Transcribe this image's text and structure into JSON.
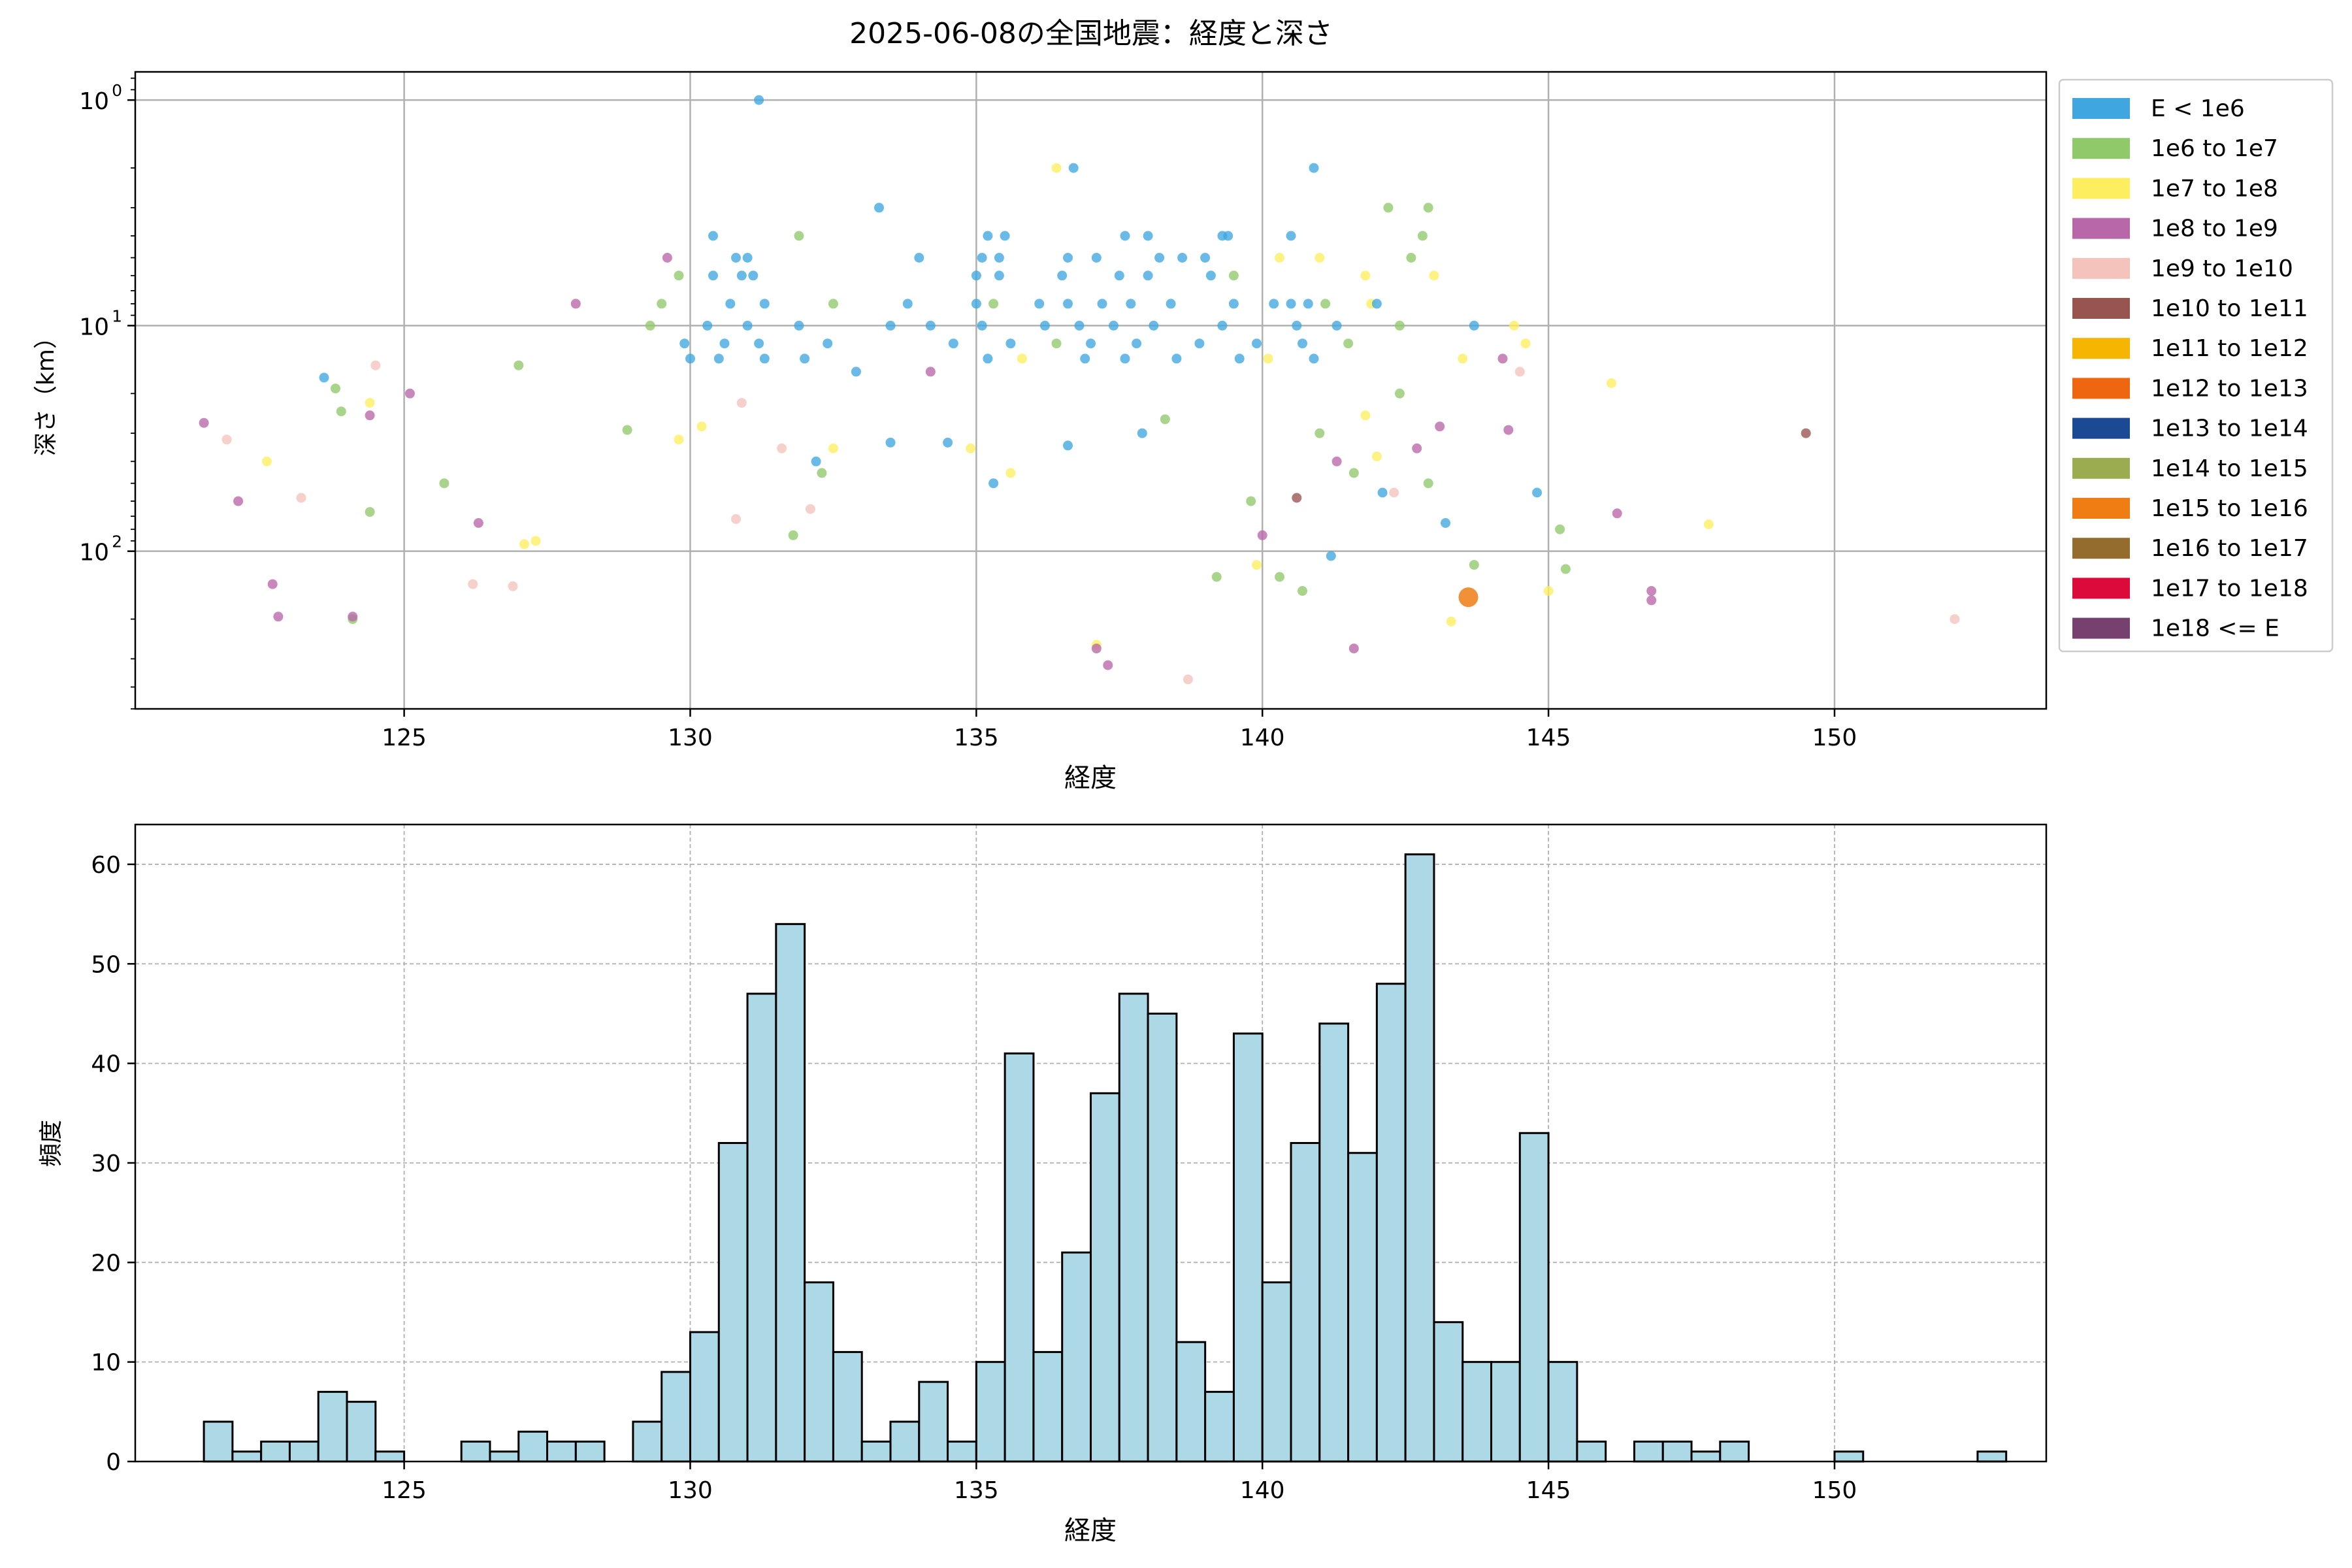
{
  "colors": {
    "bins": [
      "#3fa6df",
      "#8fc96a",
      "#fdee5f",
      "#b867a8",
      "#f4c3bb",
      "#98554f",
      "#f6b500",
      "#ee6710",
      "#1c4994",
      "#9bab4f",
      "#ef7d14",
      "#936c2e",
      "#db0a3a",
      "#76406f"
    ],
    "hist_fill": "#add8e6",
    "hist_edge": "#000000",
    "grid": "#b0b0b0",
    "small_point": "#c8c8c8"
  },
  "chart_data": [
    {
      "type": "scatter",
      "title": "2025-06-08の全国地震：経度と深さ",
      "xlabel": "経度",
      "ylabel": "深さ（km）",
      "xlim": [
        120.3,
        153.7
      ],
      "ylim": [
        500,
        0.75
      ],
      "y_scale": "log",
      "y_inverted": true,
      "grid": true,
      "x_ticks": [
        125,
        130,
        135,
        140,
        145,
        150
      ],
      "x_tick_labels": [
        "125",
        "130",
        "135",
        "140",
        "145",
        "150"
      ],
      "y_ticks": [
        1,
        10,
        100
      ],
      "y_tick_labels": [
        [
          "10",
          "0"
        ],
        [
          "10",
          "1"
        ],
        [
          "10",
          "2"
        ]
      ],
      "legend_position": "outside-right",
      "legend": [
        "E < 1e6",
        "1e6 to 1e7",
        "1e7 to 1e8",
        "1e8 to 1e9",
        "1e9 to 1e10",
        "1e10 to 1e11",
        "1e11 to 1e12",
        "1e12 to 1e13",
        "1e13 to 1e14",
        "1e14 to 1e15",
        "1e15 to 1e16",
        "1e16 to 1e17",
        "1e17 to 1e18",
        "1e18 <= E"
      ],
      "points": [
        {
          "x": 131.2,
          "y": 1,
          "c": 0
        },
        {
          "x": 136.4,
          "y": 2,
          "c": 2
        },
        {
          "x": 136.7,
          "y": 2,
          "c": 0
        },
        {
          "x": 140.9,
          "y": 2,
          "c": 0
        },
        {
          "x": 133.3,
          "y": 3,
          "c": 0
        },
        {
          "x": 142.2,
          "y": 3,
          "c": 1
        },
        {
          "x": 142.9,
          "y": 3,
          "c": 1
        },
        {
          "x": 130.4,
          "y": 4,
          "c": 0
        },
        {
          "x": 131.9,
          "y": 4,
          "c": 1
        },
        {
          "x": 135.2,
          "y": 4,
          "c": 0
        },
        {
          "x": 135.5,
          "y": 4,
          "c": 0
        },
        {
          "x": 137.6,
          "y": 4,
          "c": 0
        },
        {
          "x": 138.0,
          "y": 4,
          "c": 0
        },
        {
          "x": 139.3,
          "y": 4,
          "c": 0
        },
        {
          "x": 139.4,
          "y": 4,
          "c": 0
        },
        {
          "x": 140.5,
          "y": 4,
          "c": 0
        },
        {
          "x": 142.8,
          "y": 4,
          "c": 1
        },
        {
          "x": 129.6,
          "y": 5,
          "c": 3
        },
        {
          "x": 130.8,
          "y": 5,
          "c": 0
        },
        {
          "x": 131.0,
          "y": 5,
          "c": 0
        },
        {
          "x": 134.0,
          "y": 5,
          "c": 0
        },
        {
          "x": 135.1,
          "y": 5,
          "c": 0
        },
        {
          "x": 135.4,
          "y": 5,
          "c": 0
        },
        {
          "x": 136.6,
          "y": 5,
          "c": 0
        },
        {
          "x": 137.1,
          "y": 5,
          "c": 0
        },
        {
          "x": 138.2,
          "y": 5,
          "c": 0
        },
        {
          "x": 138.6,
          "y": 5,
          "c": 0
        },
        {
          "x": 139.0,
          "y": 5,
          "c": 0
        },
        {
          "x": 140.3,
          "y": 5,
          "c": 2
        },
        {
          "x": 141.0,
          "y": 5,
          "c": 2
        },
        {
          "x": 142.6,
          "y": 5,
          "c": 1
        },
        {
          "x": 129.8,
          "y": 6,
          "c": 1
        },
        {
          "x": 130.4,
          "y": 6,
          "c": 0
        },
        {
          "x": 130.9,
          "y": 6,
          "c": 0
        },
        {
          "x": 131.1,
          "y": 6,
          "c": 0
        },
        {
          "x": 135.0,
          "y": 6,
          "c": 0
        },
        {
          "x": 135.4,
          "y": 6,
          "c": 0
        },
        {
          "x": 136.5,
          "y": 6,
          "c": 0
        },
        {
          "x": 137.5,
          "y": 6,
          "c": 0
        },
        {
          "x": 138.0,
          "y": 6,
          "c": 0
        },
        {
          "x": 139.1,
          "y": 6,
          "c": 0
        },
        {
          "x": 139.5,
          "y": 6,
          "c": 1
        },
        {
          "x": 141.8,
          "y": 6,
          "c": 2
        },
        {
          "x": 143.0,
          "y": 6,
          "c": 2
        },
        {
          "x": 128.0,
          "y": 8,
          "c": 3
        },
        {
          "x": 129.5,
          "y": 8,
          "c": 1
        },
        {
          "x": 130.7,
          "y": 8,
          "c": 0
        },
        {
          "x": 131.3,
          "y": 8,
          "c": 0
        },
        {
          "x": 132.5,
          "y": 8,
          "c": 1
        },
        {
          "x": 133.8,
          "y": 8,
          "c": 0
        },
        {
          "x": 135.0,
          "y": 8,
          "c": 0
        },
        {
          "x": 135.3,
          "y": 8,
          "c": 1
        },
        {
          "x": 136.1,
          "y": 8,
          "c": 0
        },
        {
          "x": 136.6,
          "y": 8,
          "c": 0
        },
        {
          "x": 137.2,
          "y": 8,
          "c": 0
        },
        {
          "x": 137.7,
          "y": 8,
          "c": 0
        },
        {
          "x": 138.4,
          "y": 8,
          "c": 0
        },
        {
          "x": 139.5,
          "y": 8,
          "c": 0
        },
        {
          "x": 140.2,
          "y": 8,
          "c": 0
        },
        {
          "x": 140.5,
          "y": 8,
          "c": 0
        },
        {
          "x": 140.8,
          "y": 8,
          "c": 0
        },
        {
          "x": 141.1,
          "y": 8,
          "c": 1
        },
        {
          "x": 141.9,
          "y": 8,
          "c": 2
        },
        {
          "x": 142.0,
          "y": 8,
          "c": 0
        },
        {
          "x": 129.3,
          "y": 10,
          "c": 1
        },
        {
          "x": 130.3,
          "y": 10,
          "c": 0
        },
        {
          "x": 131.0,
          "y": 10,
          "c": 0
        },
        {
          "x": 131.9,
          "y": 10,
          "c": 0
        },
        {
          "x": 133.5,
          "y": 10,
          "c": 0
        },
        {
          "x": 134.2,
          "y": 10,
          "c": 0
        },
        {
          "x": 135.1,
          "y": 10,
          "c": 0
        },
        {
          "x": 136.2,
          "y": 10,
          "c": 0
        },
        {
          "x": 136.8,
          "y": 10,
          "c": 0
        },
        {
          "x": 137.4,
          "y": 10,
          "c": 0
        },
        {
          "x": 138.1,
          "y": 10,
          "c": 0
        },
        {
          "x": 139.3,
          "y": 10,
          "c": 0
        },
        {
          "x": 140.6,
          "y": 10,
          "c": 0
        },
        {
          "x": 141.3,
          "y": 10,
          "c": 0
        },
        {
          "x": 142.4,
          "y": 10,
          "c": 1
        },
        {
          "x": 143.7,
          "y": 10,
          "c": 0
        },
        {
          "x": 144.4,
          "y": 10,
          "c": 2
        },
        {
          "x": 129.9,
          "y": 12,
          "c": 0
        },
        {
          "x": 130.6,
          "y": 12,
          "c": 0
        },
        {
          "x": 131.2,
          "y": 12,
          "c": 0
        },
        {
          "x": 132.4,
          "y": 12,
          "c": 0
        },
        {
          "x": 134.6,
          "y": 12,
          "c": 0
        },
        {
          "x": 135.6,
          "y": 12,
          "c": 0
        },
        {
          "x": 136.4,
          "y": 12,
          "c": 1
        },
        {
          "x": 137.0,
          "y": 12,
          "c": 0
        },
        {
          "x": 137.8,
          "y": 12,
          "c": 0
        },
        {
          "x": 138.9,
          "y": 12,
          "c": 0
        },
        {
          "x": 139.9,
          "y": 12,
          "c": 0
        },
        {
          "x": 140.7,
          "y": 12,
          "c": 0
        },
        {
          "x": 141.5,
          "y": 12,
          "c": 1
        },
        {
          "x": 144.6,
          "y": 12,
          "c": 2
        },
        {
          "x": 130.0,
          "y": 14,
          "c": 0
        },
        {
          "x": 130.5,
          "y": 14,
          "c": 0
        },
        {
          "x": 131.3,
          "y": 14,
          "c": 0
        },
        {
          "x": 132.0,
          "y": 14,
          "c": 0
        },
        {
          "x": 135.2,
          "y": 14,
          "c": 0
        },
        {
          "x": 135.8,
          "y": 14,
          "c": 2
        },
        {
          "x": 136.9,
          "y": 14,
          "c": 0
        },
        {
          "x": 137.6,
          "y": 14,
          "c": 0
        },
        {
          "x": 138.5,
          "y": 14,
          "c": 0
        },
        {
          "x": 139.6,
          "y": 14,
          "c": 0
        },
        {
          "x": 140.1,
          "y": 14,
          "c": 2
        },
        {
          "x": 140.9,
          "y": 14,
          "c": 0
        },
        {
          "x": 143.5,
          "y": 14,
          "c": 2
        },
        {
          "x": 144.2,
          "y": 14,
          "c": 3
        },
        {
          "x": 121.5,
          "y": 27,
          "c": 3
        },
        {
          "x": 121.9,
          "y": 32,
          "c": 4
        },
        {
          "x": 122.1,
          "y": 60,
          "c": 3
        },
        {
          "x": 122.6,
          "y": 40,
          "c": 2
        },
        {
          "x": 123.2,
          "y": 58,
          "c": 4
        },
        {
          "x": 123.6,
          "y": 17,
          "c": 0
        },
        {
          "x": 123.8,
          "y": 19,
          "c": 1
        },
        {
          "x": 123.9,
          "y": 24,
          "c": 1
        },
        {
          "x": 124.5,
          "y": 15,
          "c": 4
        },
        {
          "x": 124.4,
          "y": 22,
          "c": 2
        },
        {
          "x": 124.4,
          "y": 25,
          "c": 3
        },
        {
          "x": 124.4,
          "y": 67,
          "c": 1
        },
        {
          "x": 124.1,
          "y": 200,
          "c": 1
        },
        {
          "x": 125.1,
          "y": 20,
          "c": 3
        },
        {
          "x": 125.7,
          "y": 50,
          "c": 1
        },
        {
          "x": 126.3,
          "y": 75,
          "c": 3
        },
        {
          "x": 127.0,
          "y": 15,
          "c": 1
        },
        {
          "x": 127.1,
          "y": 93,
          "c": 2
        },
        {
          "x": 127.3,
          "y": 90,
          "c": 2
        },
        {
          "x": 126.2,
          "y": 140,
          "c": 4
        },
        {
          "x": 126.9,
          "y": 143,
          "c": 4
        },
        {
          "x": 122.7,
          "y": 140,
          "c": 3
        },
        {
          "x": 122.8,
          "y": 195,
          "c": 3
        },
        {
          "x": 124.1,
          "y": 195,
          "c": 3
        },
        {
          "x": 128.9,
          "y": 29,
          "c": 1
        },
        {
          "x": 129.8,
          "y": 32,
          "c": 2
        },
        {
          "x": 130.2,
          "y": 28,
          "c": 2
        },
        {
          "x": 130.9,
          "y": 22,
          "c": 4
        },
        {
          "x": 130.8,
          "y": 72,
          "c": 4
        },
        {
          "x": 131.6,
          "y": 35,
          "c": 4
        },
        {
          "x": 131.8,
          "y": 85,
          "c": 1
        },
        {
          "x": 132.1,
          "y": 65,
          "c": 4
        },
        {
          "x": 132.2,
          "y": 40,
          "c": 0
        },
        {
          "x": 132.3,
          "y": 45,
          "c": 1
        },
        {
          "x": 132.5,
          "y": 35,
          "c": 2
        },
        {
          "x": 132.9,
          "y": 16,
          "c": 0
        },
        {
          "x": 133.5,
          "y": 33,
          "c": 0
        },
        {
          "x": 134.2,
          "y": 16,
          "c": 3
        },
        {
          "x": 134.5,
          "y": 33,
          "c": 0
        },
        {
          "x": 134.9,
          "y": 35,
          "c": 2
        },
        {
          "x": 135.3,
          "y": 50,
          "c": 0
        },
        {
          "x": 135.6,
          "y": 45,
          "c": 2
        },
        {
          "x": 136.6,
          "y": 34,
          "c": 0
        },
        {
          "x": 137.1,
          "y": 260,
          "c": 2
        },
        {
          "x": 137.1,
          "y": 270,
          "c": 3
        },
        {
          "x": 137.3,
          "y": 320,
          "c": 3
        },
        {
          "x": 138.7,
          "y": 370,
          "c": 4
        },
        {
          "x": 138.3,
          "y": 26,
          "c": 1
        },
        {
          "x": 137.9,
          "y": 30,
          "c": 0
        },
        {
          "x": 139.2,
          "y": 130,
          "c": 1
        },
        {
          "x": 139.8,
          "y": 60,
          "c": 1
        },
        {
          "x": 139.9,
          "y": 115,
          "c": 2
        },
        {
          "x": 140.0,
          "y": 85,
          "c": 3
        },
        {
          "x": 140.3,
          "y": 130,
          "c": 1
        },
        {
          "x": 140.6,
          "y": 58,
          "c": 5
        },
        {
          "x": 140.7,
          "y": 150,
          "c": 1
        },
        {
          "x": 141.0,
          "y": 30,
          "c": 1
        },
        {
          "x": 141.2,
          "y": 105,
          "c": 0
        },
        {
          "x": 141.3,
          "y": 40,
          "c": 3
        },
        {
          "x": 141.6,
          "y": 45,
          "c": 1
        },
        {
          "x": 141.6,
          "y": 270,
          "c": 3
        },
        {
          "x": 141.8,
          "y": 25,
          "c": 2
        },
        {
          "x": 142.0,
          "y": 38,
          "c": 2
        },
        {
          "x": 142.1,
          "y": 55,
          "c": 0
        },
        {
          "x": 142.3,
          "y": 55,
          "c": 4
        },
        {
          "x": 142.4,
          "y": 20,
          "c": 1
        },
        {
          "x": 142.7,
          "y": 35,
          "c": 3
        },
        {
          "x": 142.9,
          "y": 50,
          "c": 1
        },
        {
          "x": 143.1,
          "y": 28,
          "c": 3
        },
        {
          "x": 143.2,
          "y": 75,
          "c": 0
        },
        {
          "x": 143.3,
          "y": 205,
          "c": 2
        },
        {
          "x": 143.6,
          "y": 160,
          "c": 10
        },
        {
          "x": 143.7,
          "y": 115,
          "c": 1
        },
        {
          "x": 144.3,
          "y": 29,
          "c": 3
        },
        {
          "x": 144.5,
          "y": 16,
          "c": 4
        },
        {
          "x": 144.8,
          "y": 55,
          "c": 0
        },
        {
          "x": 145.2,
          "y": 80,
          "c": 1
        },
        {
          "x": 145.0,
          "y": 150,
          "c": 2
        },
        {
          "x": 145.3,
          "y": 120,
          "c": 1
        },
        {
          "x": 146.1,
          "y": 18,
          "c": 2
        },
        {
          "x": 146.2,
          "y": 68,
          "c": 3
        },
        {
          "x": 146.8,
          "y": 150,
          "c": 3
        },
        {
          "x": 146.8,
          "y": 165,
          "c": 3
        },
        {
          "x": 147.8,
          "y": 76,
          "c": 2
        },
        {
          "x": 149.5,
          "y": 30,
          "c": 5
        },
        {
          "x": 152.1,
          "y": 200,
          "c": 4
        }
      ]
    },
    {
      "type": "bar",
      "xlabel": "経度",
      "ylabel": "頻度",
      "xlim": [
        120.3,
        153.7
      ],
      "ylim": [
        0,
        64
      ],
      "grid": true,
      "x_ticks": [
        125,
        130,
        135,
        140,
        145,
        150
      ],
      "x_tick_labels": [
        "125",
        "130",
        "135",
        "140",
        "145",
        "150"
      ],
      "y_ticks": [
        0,
        10,
        20,
        30,
        40,
        50,
        60
      ],
      "y_tick_labels": [
        "0",
        "10",
        "20",
        "30",
        "40",
        "50",
        "60"
      ],
      "bin_start": 121.5,
      "bin_width": 0.5,
      "values": [
        4,
        1,
        2,
        2,
        7,
        6,
        1,
        0,
        0,
        2,
        1,
        3,
        2,
        2,
        0,
        4,
        9,
        13,
        32,
        47,
        54,
        18,
        11,
        2,
        4,
        8,
        2,
        10,
        41,
        11,
        21,
        37,
        47,
        45,
        12,
        7,
        43,
        18,
        32,
        44,
        31,
        48,
        61,
        14,
        10,
        10,
        33,
        10,
        2,
        0,
        2,
        2,
        1,
        2,
        0,
        0,
        0,
        1,
        0,
        0,
        0,
        0,
        1
      ]
    }
  ]
}
